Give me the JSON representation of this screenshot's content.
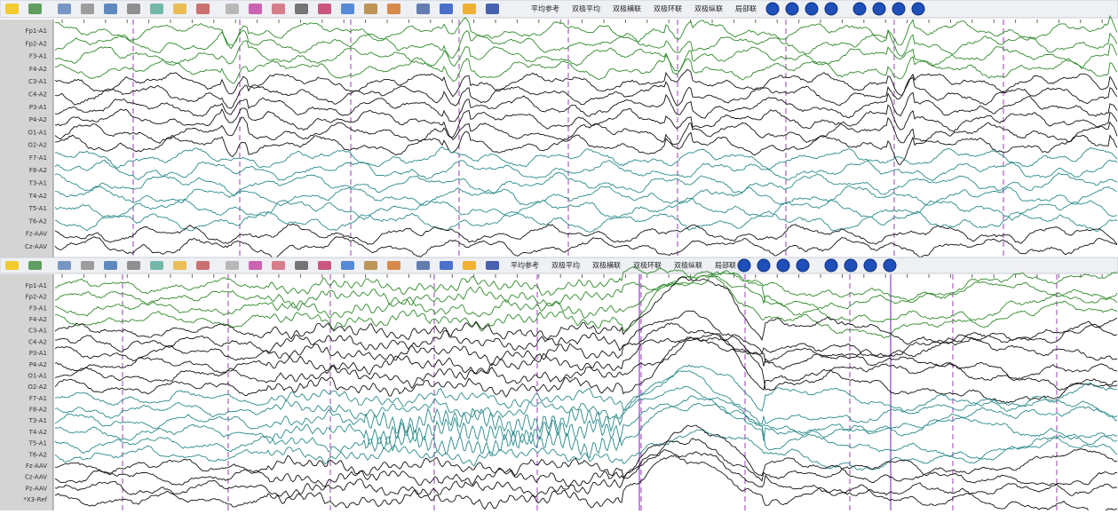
{
  "panels": [
    {
      "toolbar": {
        "montages": [
          "平均参考",
          "双极平均",
          "双极横联",
          "双极环联",
          "双极纵联",
          "局部联"
        ]
      },
      "channels": [
        "Fp1-A1",
        "Fp2-A2",
        "F3-A1",
        "F4-A2",
        "C3-A1",
        "C4-A2",
        "P3-A1",
        "P4-A2",
        "O1-A1",
        "O2-A2",
        "F7-A1",
        "F8-A2",
        "T3-A1",
        "T4-A2",
        "T5-A1",
        "T6-A2",
        "Fz-AAV",
        "Cz-AAV"
      ]
    },
    {
      "toolbar": {
        "montages": [
          "平均参考",
          "双极平均",
          "双极横联",
          "双极环联",
          "双极纵联",
          "局部联"
        ]
      },
      "channels": [
        "Fp1-A1",
        "Fp2-A2",
        "F3-A1",
        "F4-A2",
        "C3-A1",
        "C4-A2",
        "P3-A1",
        "P4-A2",
        "O1-A1",
        "O2-A2",
        "F7-A1",
        "F8-A2",
        "T3-A1",
        "T4-A2",
        "T5-A1",
        "T6-A2",
        "Fz-AAV",
        "Cz-AAV",
        "Pz-AAV",
        "*X3-Ref"
      ]
    }
  ]
}
